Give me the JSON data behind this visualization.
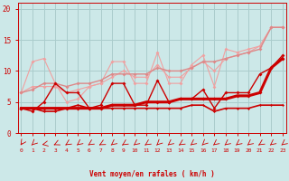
{
  "xlabel": "Vent moyen/en rafales ( km/h )",
  "bg_color": "#cce8e8",
  "grid_color": "#aacccc",
  "line_color_dark": "#cc0000",
  "x_ticks": [
    0,
    1,
    2,
    3,
    4,
    5,
    6,
    7,
    8,
    9,
    10,
    11,
    12,
    13,
    14,
    15,
    16,
    17,
    18,
    19,
    20,
    21,
    22,
    23
  ],
  "y_ticks": [
    0,
    5,
    10,
    15,
    20
  ],
  "ylim": [
    0,
    21
  ],
  "xlim": [
    -0.3,
    23.3
  ],
  "series": [
    {
      "x": [
        0,
        1,
        2,
        3,
        4,
        5,
        6,
        7,
        8,
        9,
        10,
        11,
        12,
        13,
        14,
        15,
        16,
        17,
        18,
        19,
        20,
        21,
        22,
        23
      ],
      "y": [
        6.5,
        11.5,
        12.0,
        8.0,
        5.0,
        5.5,
        7.5,
        8.0,
        11.5,
        11.5,
        8.0,
        8.0,
        13.0,
        8.0,
        8.0,
        11.0,
        12.5,
        7.5,
        13.5,
        13.0,
        13.5,
        14.0,
        17.0,
        17.0
      ],
      "color": "#f0a0a0",
      "lw": 0.8,
      "marker": "D",
      "ms": 2.0,
      "zorder": 2
    },
    {
      "x": [
        0,
        1,
        2,
        3,
        4,
        5,
        6,
        7,
        8,
        9,
        10,
        11,
        12,
        13,
        14,
        15,
        16,
        17,
        18,
        19,
        20,
        21,
        22,
        23
      ],
      "y": [
        6.5,
        7.5,
        7.5,
        7.5,
        6.5,
        7.0,
        7.5,
        8.0,
        9.0,
        10.0,
        9.0,
        9.0,
        11.0,
        9.0,
        9.0,
        10.5,
        11.5,
        10.0,
        12.0,
        12.5,
        13.0,
        14.0,
        17.0,
        17.0
      ],
      "color": "#f0a0a0",
      "lw": 0.8,
      "marker": "D",
      "ms": 2.0,
      "zorder": 2
    },
    {
      "x": [
        0,
        1,
        2,
        3,
        4,
        5,
        6,
        7,
        8,
        9,
        10,
        11,
        12,
        13,
        14,
        15,
        16,
        17,
        18,
        19,
        20,
        21,
        22,
        23
      ],
      "y": [
        6.5,
        7.0,
        8.0,
        8.0,
        7.5,
        8.0,
        8.0,
        8.5,
        9.5,
        9.5,
        9.5,
        9.5,
        10.5,
        10.0,
        10.0,
        10.5,
        11.5,
        11.5,
        12.0,
        12.5,
        13.0,
        13.5,
        17.0,
        17.0
      ],
      "color": "#dd8888",
      "lw": 1.0,
      "marker": "D",
      "ms": 2.0,
      "zorder": 2
    },
    {
      "x": [
        0,
        1,
        2,
        3,
        4,
        5,
        6,
        7,
        8,
        9,
        10,
        11,
        12,
        13,
        14,
        15,
        16,
        17,
        18,
        19,
        20,
        21,
        22,
        23
      ],
      "y": [
        4.0,
        3.5,
        5.0,
        8.0,
        6.5,
        6.5,
        4.0,
        4.5,
        8.0,
        8.0,
        4.5,
        4.5,
        8.5,
        5.0,
        5.5,
        5.5,
        7.0,
        4.0,
        6.5,
        6.5,
        6.5,
        9.5,
        10.5,
        12.5
      ],
      "color": "#cc0000",
      "lw": 1.0,
      "marker": "D",
      "ms": 2.0,
      "zorder": 3
    },
    {
      "x": [
        0,
        1,
        2,
        3,
        4,
        5,
        6,
        7,
        8,
        9,
        10,
        11,
        12,
        13,
        14,
        15,
        16,
        17,
        18,
        19,
        20,
        21,
        22,
        23
      ],
      "y": [
        4.0,
        4.0,
        4.0,
        4.0,
        4.0,
        4.0,
        4.0,
        4.0,
        4.5,
        4.5,
        4.5,
        5.0,
        5.0,
        5.0,
        5.5,
        5.5,
        5.5,
        5.5,
        5.5,
        6.0,
        6.0,
        6.5,
        10.5,
        12.0
      ],
      "color": "#cc0000",
      "lw": 2.2,
      "marker": "D",
      "ms": 2.0,
      "zorder": 4
    },
    {
      "x": [
        0,
        1,
        2,
        3,
        4,
        5,
        6,
        7,
        8,
        9,
        10,
        11,
        12,
        13,
        14,
        15,
        16,
        17,
        18,
        19,
        20,
        21,
        22,
        23
      ],
      "y": [
        4.0,
        4.0,
        3.5,
        3.5,
        4.0,
        4.5,
        4.0,
        4.0,
        4.0,
        4.0,
        4.0,
        4.0,
        4.0,
        4.0,
        4.0,
        4.5,
        4.5,
        3.5,
        4.0,
        4.0,
        4.0,
        4.5,
        4.5,
        4.5
      ],
      "color": "#cc0000",
      "lw": 1.2,
      "marker": "D",
      "ms": 1.5,
      "zorder": 3
    }
  ],
  "arrow_color": "#cc0000",
  "arrow_angles": [
    200,
    210,
    250,
    230,
    220,
    215,
    220,
    225,
    215,
    220,
    215,
    220,
    210,
    215,
    220,
    215,
    210,
    215,
    215,
    215,
    215,
    220,
    215,
    215
  ]
}
